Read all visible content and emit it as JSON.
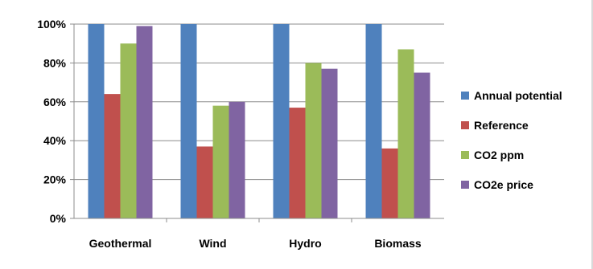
{
  "chart_data": {
    "type": "bar",
    "title": "",
    "xlabel": "",
    "ylabel": "",
    "categories": [
      "Geothermal",
      "Wind",
      "Hydro",
      "Biomass"
    ],
    "series": [
      {
        "name": "Annual potential",
        "color": "#4f81bd",
        "values": [
          100,
          100,
          100,
          100
        ]
      },
      {
        "name": "Reference",
        "color": "#c0504d",
        "values": [
          64,
          37,
          57,
          36
        ]
      },
      {
        "name": "CO2 ppm",
        "color": "#9bbb59",
        "values": [
          90,
          58,
          80,
          87
        ]
      },
      {
        "name": "CO2e price",
        "color": "#8064a2",
        "values": [
          99,
          60,
          77,
          75
        ]
      }
    ],
    "ylim": [
      0,
      100
    ],
    "yticks": [
      "0%",
      "20%",
      "40%",
      "60%",
      "80%",
      "100%"
    ],
    "grid": true,
    "legend_position": "right"
  }
}
